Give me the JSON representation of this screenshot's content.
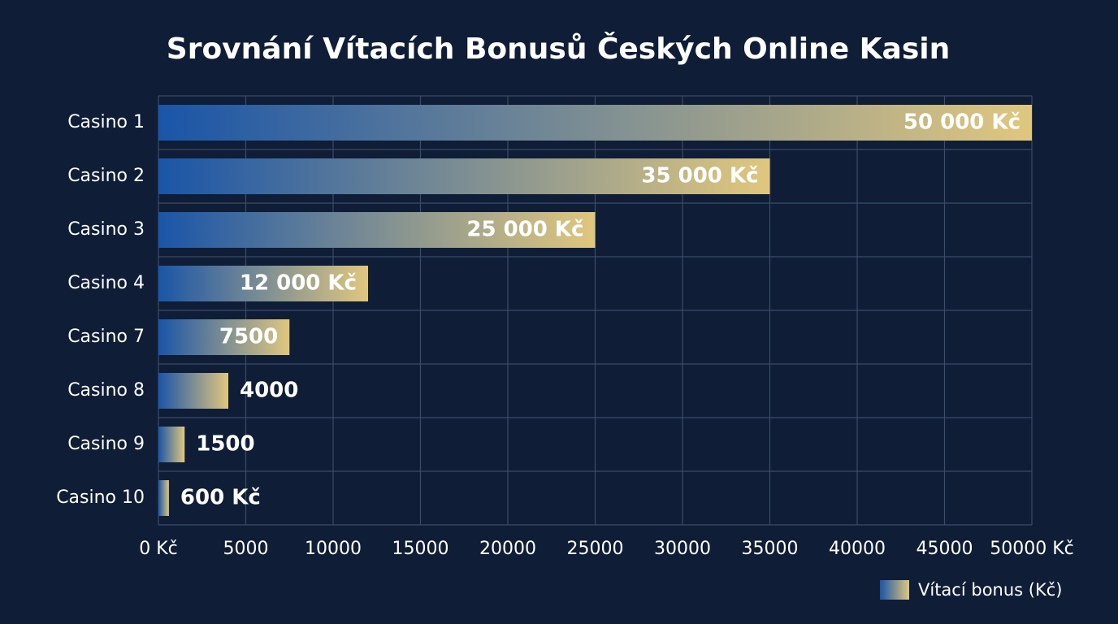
{
  "chart_data": {
    "type": "bar",
    "orientation": "horizontal",
    "title": "Srovnání Vítacích Bonusů Českých Online Kasin",
    "categories": [
      "Casino 1",
      "Casino 2",
      "Casino 3",
      "Casino 4",
      "Casino 7",
      "Casino 8",
      "Casino 9",
      "Casino 10"
    ],
    "series": [
      {
        "name": "Vítací bonus (Kč)",
        "colors": [
          "#1a55a8",
          "#e0c77e"
        ],
        "values": [
          50000,
          35000,
          25000,
          12000,
          7500,
          4000,
          1500,
          600
        ],
        "value_labels": [
          "50 000 Kč",
          "35 000 Kč",
          "25 000 Kč",
          "12 000 Kč",
          "7500",
          "4000",
          "1500",
          "600 Kč"
        ]
      }
    ],
    "xlim": [
      0,
      50000
    ],
    "xticks": [
      {
        "value": 0,
        "label": "0 Kč"
      },
      5000,
      10000,
      15000,
      20000,
      25000,
      30000,
      35000,
      40000,
      45000,
      {
        "value": 50000,
        "label": "50000 Kč"
      }
    ],
    "grid": true,
    "legend": "bottom-right"
  }
}
